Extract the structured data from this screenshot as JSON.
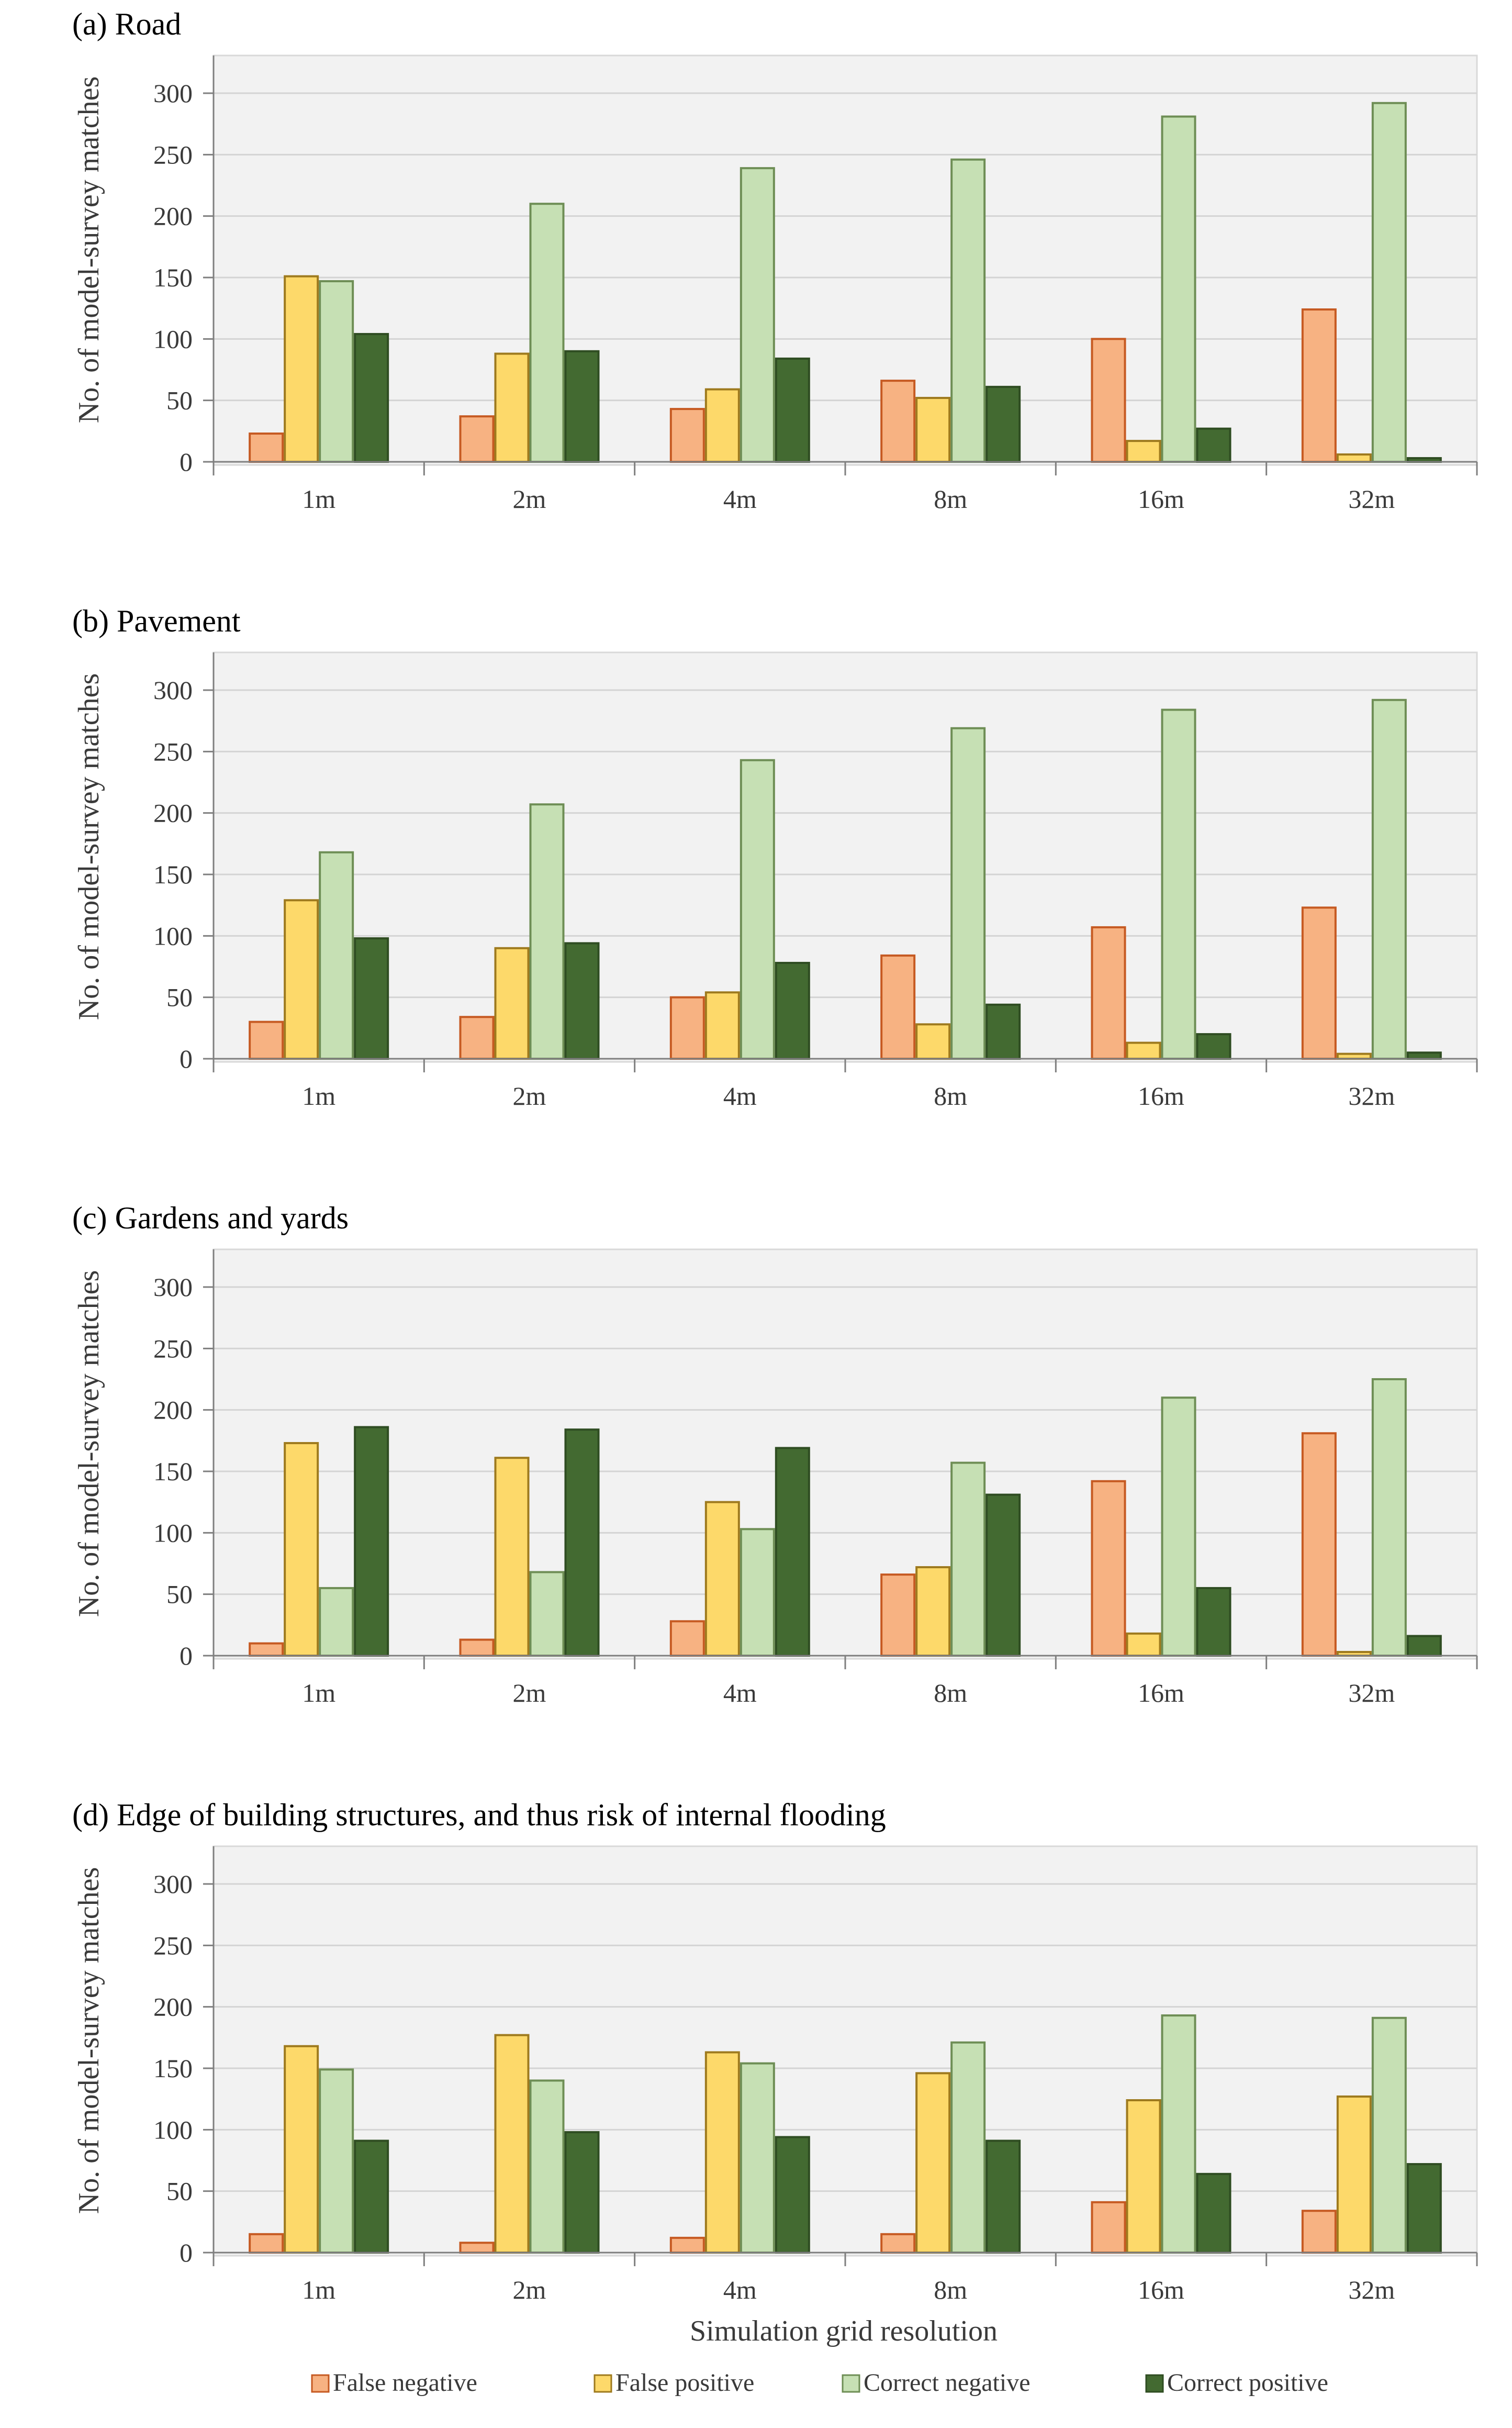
{
  "chart_data": [
    {
      "type": "bar",
      "title": "(a) Road",
      "ylabel": "No. of model-survey matches",
      "ylim": [
        0,
        300
      ],
      "yticks": [
        0,
        50,
        100,
        150,
        200,
        250,
        300
      ],
      "categories": [
        "1m",
        "2m",
        "4m",
        "8m",
        "16m",
        "32m"
      ],
      "series": [
        {
          "name": "False negative",
          "values": [
            23,
            37,
            43,
            66,
            100,
            124
          ]
        },
        {
          "name": "False positive",
          "values": [
            151,
            88,
            59,
            52,
            17,
            6
          ]
        },
        {
          "name": "Correct negative",
          "values": [
            147,
            210,
            239,
            246,
            281,
            292
          ]
        },
        {
          "name": "Correct positive",
          "values": [
            104,
            90,
            84,
            61,
            27,
            3
          ]
        }
      ]
    },
    {
      "type": "bar",
      "title": "(b) Pavement",
      "ylabel": "No. of model-survey matches",
      "ylim": [
        0,
        300
      ],
      "yticks": [
        0,
        50,
        100,
        150,
        200,
        250,
        300
      ],
      "categories": [
        "1m",
        "2m",
        "4m",
        "8m",
        "16m",
        "32m"
      ],
      "series": [
        {
          "name": "False negative",
          "values": [
            30,
            34,
            50,
            84,
            107,
            123
          ]
        },
        {
          "name": "False positive",
          "values": [
            129,
            90,
            54,
            28,
            13,
            4
          ]
        },
        {
          "name": "Correct negative",
          "values": [
            168,
            207,
            243,
            269,
            284,
            292
          ]
        },
        {
          "name": "Correct positive",
          "values": [
            98,
            94,
            78,
            44,
            20,
            5
          ]
        }
      ]
    },
    {
      "type": "bar",
      "title": "(c) Gardens and yards",
      "ylabel": "No. of model-survey matches",
      "ylim": [
        0,
        300
      ],
      "yticks": [
        0,
        50,
        100,
        150,
        200,
        250,
        300
      ],
      "categories": [
        "1m",
        "2m",
        "4m",
        "8m",
        "16m",
        "32m"
      ],
      "series": [
        {
          "name": "False negative",
          "values": [
            10,
            13,
            28,
            66,
            142,
            181
          ]
        },
        {
          "name": "False positive",
          "values": [
            173,
            161,
            125,
            72,
            18,
            3
          ]
        },
        {
          "name": "Correct negative",
          "values": [
            55,
            68,
            103,
            157,
            210,
            225
          ]
        },
        {
          "name": "Correct positive",
          "values": [
            186,
            184,
            169,
            131,
            55,
            16
          ]
        }
      ]
    },
    {
      "type": "bar",
      "title": "(d) Edge of building structures, and thus risk of internal flooding",
      "ylabel": "No. of model-survey matches",
      "xlabel": "Simulation grid resolution",
      "ylim": [
        0,
        300
      ],
      "yticks": [
        0,
        50,
        100,
        150,
        200,
        250,
        300
      ],
      "categories": [
        "1m",
        "2m",
        "4m",
        "8m",
        "16m",
        "32m"
      ],
      "series": [
        {
          "name": "False negative",
          "values": [
            15,
            8,
            12,
            15,
            41,
            34
          ]
        },
        {
          "name": "False positive",
          "values": [
            168,
            177,
            163,
            146,
            124,
            127
          ]
        },
        {
          "name": "Correct negative",
          "values": [
            149,
            140,
            154,
            171,
            193,
            191
          ]
        },
        {
          "name": "Correct positive",
          "values": [
            91,
            98,
            94,
            91,
            64,
            72
          ]
        }
      ]
    }
  ],
  "legend": {
    "position": "bottom",
    "items": [
      {
        "label": "False negative",
        "fill": "#F7B282",
        "stroke": "#C65A22"
      },
      {
        "label": "False positive",
        "fill": "#FDD96A",
        "stroke": "#9E7A1E"
      },
      {
        "label": "Correct negative",
        "fill": "#C6E0B4",
        "stroke": "#6E8E55"
      },
      {
        "label": "Correct positive",
        "fill": "#436A31",
        "stroke": "#2F4D22"
      }
    ]
  },
  "style": {
    "plot_background": "#F2F2F2",
    "gridline": "#D4D4D4",
    "axis": "#7F7F7F"
  }
}
